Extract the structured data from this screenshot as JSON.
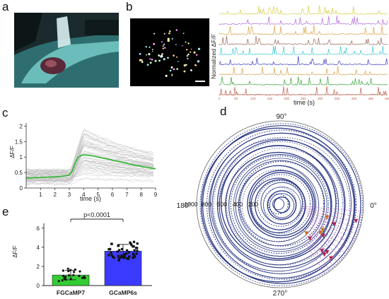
{
  "panels": {
    "a": {
      "letter": "a"
    },
    "b": {
      "letter": "b",
      "ylabel": "Normalized ΔF/F",
      "xlabel": "time (s)",
      "ticks": [
        "0",
        "50",
        "100",
        "150",
        "200",
        "250",
        "300",
        "350",
        "400",
        "450",
        "500"
      ],
      "trace_colors": [
        "#d6cf4a",
        "#b36bdc",
        "#d8a24a",
        "#9a6a5a",
        "#3fc7d4",
        "#3e3ec6",
        "#d8a24a",
        "#3aa53a",
        "#c06050"
      ]
    },
    "c": {
      "letter": "c",
      "ylabel": "ΔF/F",
      "xlabel": "time (s)",
      "yticks": [
        "0",
        "0.5",
        "1",
        "1.5",
        "2"
      ],
      "xticks": [
        "1",
        "2",
        "3",
        "4",
        "5",
        "6",
        "7",
        "8",
        "9"
      ]
    },
    "d": {
      "letter": "d",
      "angles": {
        "top": "90°",
        "left": "180°",
        "right": "0°",
        "bottom": "270°"
      },
      "radial_labels": [
        "1000",
        "800",
        "600",
        "400",
        "200"
      ]
    },
    "e": {
      "letter": "e",
      "ylabel": "ΔF/F",
      "pvalue": "p<0.0001"
    }
  },
  "chart_data": [
    {
      "type": "line",
      "panel": "c",
      "xlabel": "time (s)",
      "ylabel": "ΔF/F",
      "xlim": [
        0,
        9
      ],
      "ylim": [
        0,
        2
      ],
      "series": [
        {
          "x": [
            0,
            0.5,
            1,
            1.5,
            2,
            2.5,
            3,
            3.2,
            3.4,
            3.6,
            3.8,
            4,
            4.5,
            5,
            5.5,
            6,
            6.5,
            7,
            7.5,
            8,
            8.5,
            9
          ],
          "y": [
            0.32,
            0.33,
            0.34,
            0.35,
            0.36,
            0.38,
            0.42,
            0.55,
            0.8,
            0.98,
            1.05,
            1.07,
            1.05,
            1.0,
            0.95,
            0.9,
            0.85,
            0.8,
            0.74,
            0.7,
            0.66,
            0.62
          ],
          "color": "#3cb83c"
        }
      ]
    },
    {
      "type": "bar",
      "panel": "e",
      "categories": [
        "FGCaMP7",
        "GCaMP6s"
      ],
      "values": [
        1.1,
        3.6
      ],
      "errors": [
        0.5,
        0.7
      ],
      "colors": [
        "#33cc33",
        "#3b3bff"
      ],
      "ylabel": "ΔF/F",
      "ylim": [
        0,
        6.5
      ],
      "yticks": [
        0,
        2,
        4,
        6
      ],
      "annotation": "p<0.0001"
    }
  ]
}
